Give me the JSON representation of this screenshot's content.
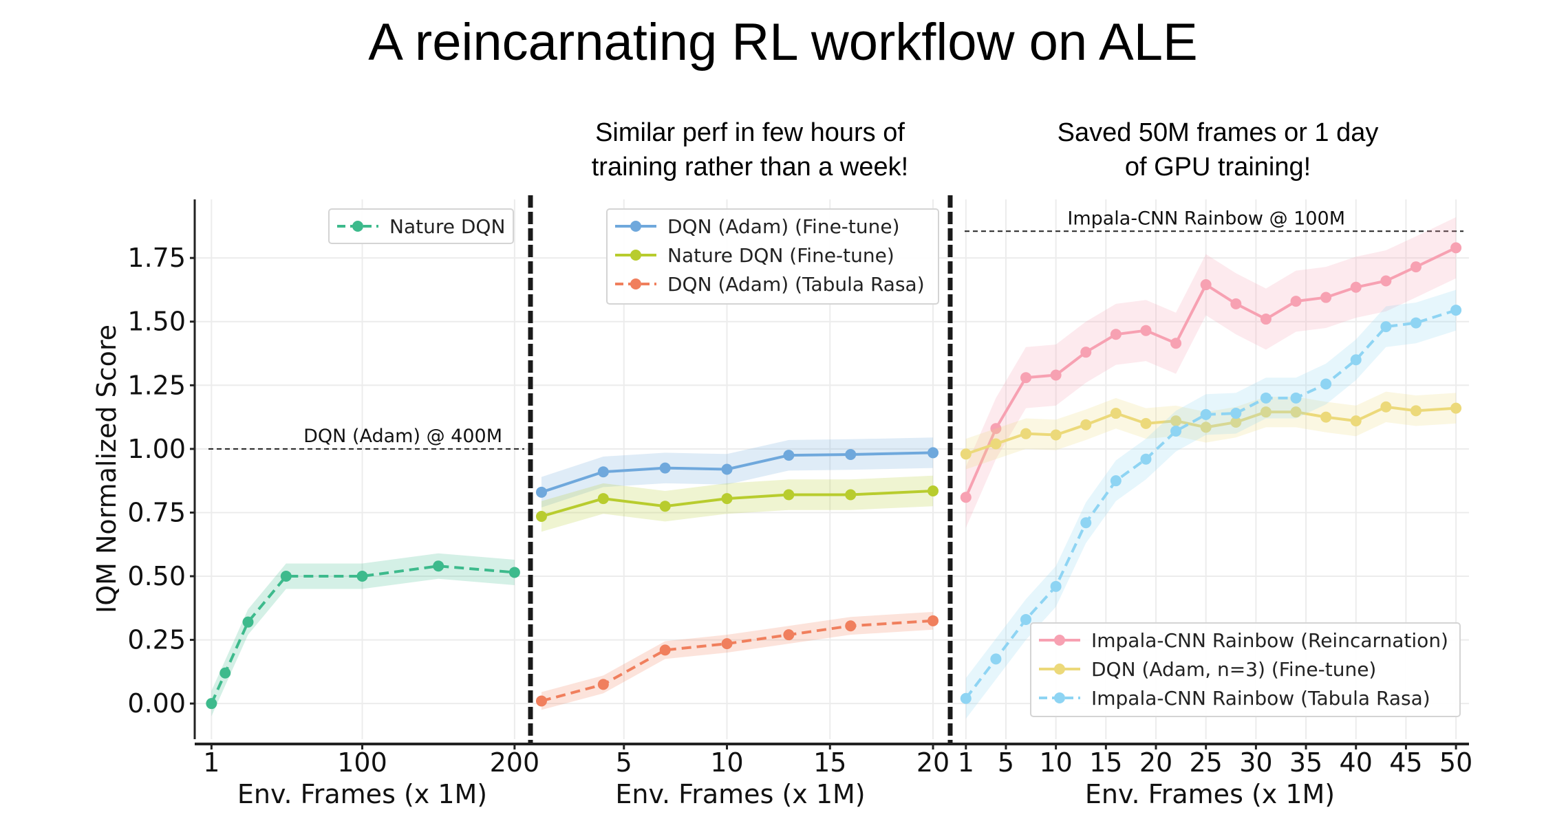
{
  "figure": {
    "title": "A reincarnating RL workflow on ALE",
    "subtitles": [
      [
        "Similar perf in few hours of",
        "training rather than a week!"
      ],
      [
        "Saved 50M frames or 1 day",
        "of GPU training!"
      ]
    ]
  },
  "chart_data": [
    {
      "type": "line",
      "xlabel": "Env. Frames (x 1M)",
      "ylabel": "IQM Normalized Score",
      "xlim": [
        -10,
        210
      ],
      "ylim": [
        -0.14,
        1.98
      ],
      "xticks": [
        1,
        100,
        200
      ],
      "yticks": [
        0.0,
        0.25,
        0.5,
        0.75,
        1.0,
        1.25,
        1.5,
        1.75
      ],
      "ytick_labels": [
        "0.00",
        "0.25",
        "0.50",
        "0.75",
        "1.00",
        "1.25",
        "1.50",
        "1.75"
      ],
      "grid": true,
      "legend": "top-right",
      "reference_line": {
        "label": "DQN (Adam) @ 400M",
        "y": 1.0
      },
      "series": [
        {
          "name": "Nature DQN",
          "color": "#3dba8c",
          "dashed": true,
          "x": [
            1,
            10,
            25,
            50,
            100,
            150,
            200
          ],
          "y": [
            0.0,
            0.12,
            0.32,
            0.5,
            0.5,
            0.54,
            0.515
          ],
          "band": 0.05
        }
      ]
    },
    {
      "type": "line",
      "xlabel": "Env. Frames (x 1M)",
      "xlim": [
        0.5,
        20.8
      ],
      "ylim": [
        -0.14,
        1.98
      ],
      "xticks": [
        5,
        10,
        15,
        20
      ],
      "grid": true,
      "legend": "top-right",
      "series": [
        {
          "name": "DQN (Adam) (Fine-tune)",
          "color": "#6fa8dc",
          "dashed": false,
          "x": [
            1,
            4,
            7,
            10,
            13,
            16,
            20
          ],
          "y": [
            0.83,
            0.91,
            0.925,
            0.92,
            0.975,
            0.978,
            0.985
          ],
          "band": 0.06
        },
        {
          "name": "Nature DQN (Fine-tune)",
          "color": "#b8cc2e",
          "dashed": false,
          "x": [
            1,
            4,
            7,
            10,
            13,
            16,
            20
          ],
          "y": [
            0.735,
            0.805,
            0.775,
            0.805,
            0.82,
            0.82,
            0.835
          ],
          "band": 0.06
        },
        {
          "name": "DQN (Adam) (Tabula Rasa)",
          "color": "#f07f5d",
          "dashed": true,
          "x": [
            1,
            4,
            7,
            10,
            13,
            16,
            20
          ],
          "y": [
            0.01,
            0.075,
            0.21,
            0.235,
            0.27,
            0.305,
            0.325
          ],
          "band": 0.035
        }
      ]
    },
    {
      "type": "line",
      "xlabel": "Env. Frames (x 1M)",
      "xlim": [
        -0.5,
        51.3
      ],
      "ylim": [
        -0.14,
        1.98
      ],
      "xticks": [
        1,
        5,
        10,
        15,
        20,
        25,
        30,
        35,
        40,
        45,
        50
      ],
      "grid": true,
      "legend": "bottom-right",
      "reference_line": {
        "label": "Impala-CNN Rainbow @ 100M",
        "y": 1.855
      },
      "series": [
        {
          "name": "Impala-CNN Rainbow (Reincarnation)",
          "color": "#f7a1b2",
          "dashed": false,
          "x": [
            1,
            4,
            7,
            10,
            13,
            16,
            19,
            22,
            25,
            28,
            31,
            34,
            37,
            40,
            43,
            46,
            50
          ],
          "y": [
            0.81,
            1.08,
            1.28,
            1.29,
            1.38,
            1.45,
            1.465,
            1.415,
            1.645,
            1.57,
            1.51,
            1.58,
            1.595,
            1.635,
            1.66,
            1.715,
            1.79
          ],
          "band": 0.12
        },
        {
          "name": "DQN (Adam, n=3) (Fine-tune)",
          "color": "#ecd97a",
          "dashed": false,
          "x": [
            1,
            4,
            7,
            10,
            13,
            16,
            19,
            22,
            25,
            28,
            31,
            34,
            37,
            40,
            43,
            46,
            50
          ],
          "y": [
            0.98,
            1.02,
            1.06,
            1.055,
            1.095,
            1.14,
            1.1,
            1.11,
            1.085,
            1.105,
            1.145,
            1.145,
            1.125,
            1.11,
            1.165,
            1.15,
            1.16
          ],
          "band": 0.06
        },
        {
          "name": "Impala-CNN Rainbow (Tabula Rasa)",
          "color": "#8ed4f3",
          "dashed": true,
          "x": [
            1,
            4,
            7,
            10,
            13,
            16,
            19,
            22,
            25,
            28,
            31,
            34,
            37,
            40,
            43,
            46,
            50
          ],
          "y": [
            0.02,
            0.175,
            0.33,
            0.46,
            0.71,
            0.875,
            0.96,
            1.07,
            1.135,
            1.14,
            1.2,
            1.2,
            1.255,
            1.35,
            1.48,
            1.495,
            1.545
          ],
          "band": 0.08
        }
      ]
    }
  ]
}
